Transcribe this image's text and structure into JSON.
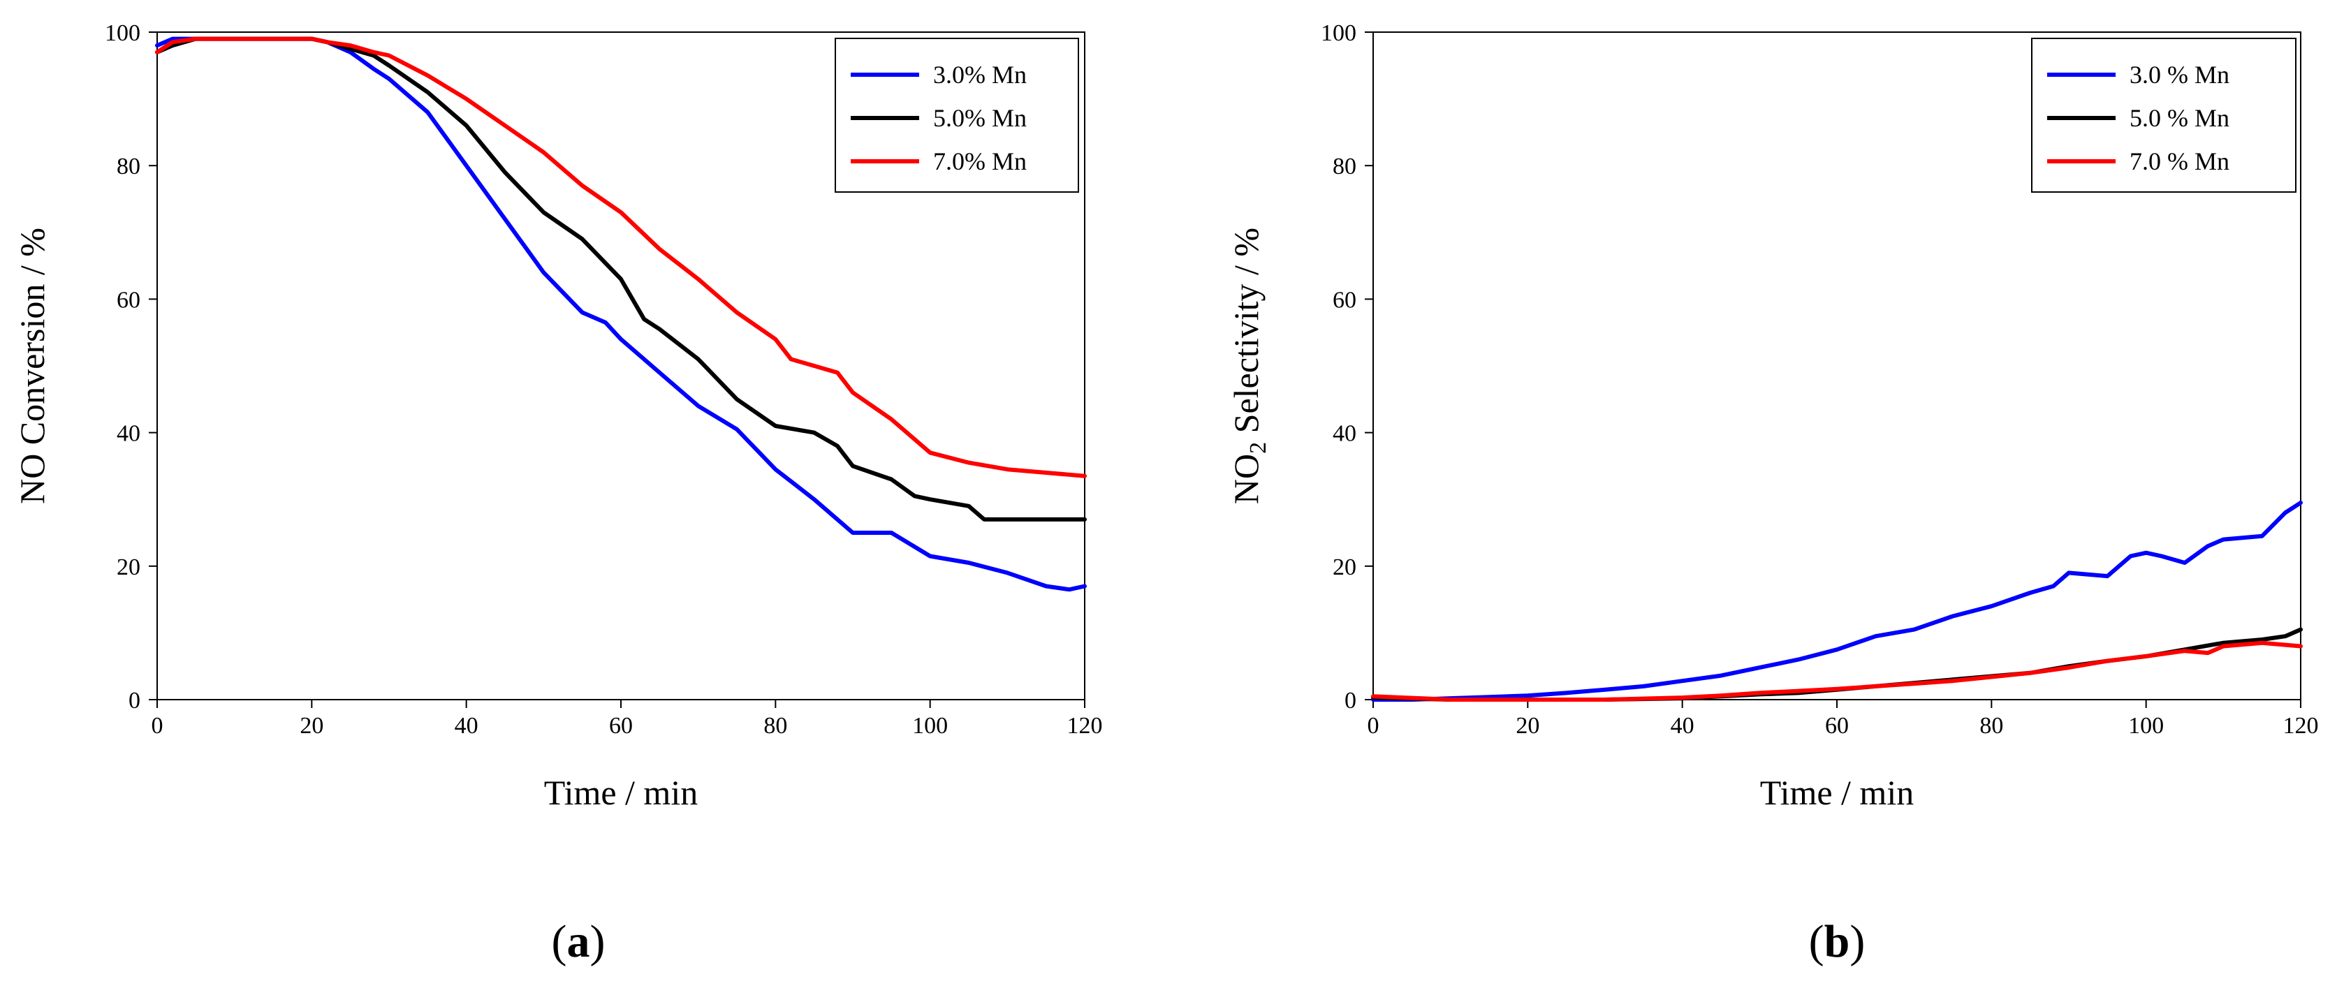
{
  "chart_data": [
    {
      "type": "line",
      "panel_label": "(a)",
      "panel_letter": "a",
      "xlabel": "Time / min",
      "ylabel": "NO Conversion / %",
      "ylabel_sub": "",
      "ylabel_rest": "",
      "xlim": [
        0,
        120
      ],
      "ylim": [
        0,
        100
      ],
      "xticks": [
        0,
        20,
        40,
        60,
        80,
        100,
        120
      ],
      "yticks": [
        0,
        20,
        40,
        60,
        80,
        100
      ],
      "grid": false,
      "legend_position": "top-right",
      "series": [
        {
          "name": "3.0% Mn",
          "color": "#0000ff",
          "x": [
            0,
            2,
            5,
            10,
            15,
            20,
            22,
            25,
            28,
            30,
            35,
            40,
            45,
            50,
            55,
            58,
            60,
            65,
            70,
            75,
            80,
            85,
            90,
            95,
            100,
            105,
            110,
            115,
            118,
            120
          ],
          "y": [
            98,
            99,
            99,
            99,
            99,
            99,
            98.5,
            97,
            94.5,
            93,
            88,
            80,
            72,
            64,
            58,
            56.5,
            54,
            49,
            44,
            40.5,
            34.5,
            30,
            25,
            25,
            21.5,
            20.5,
            19,
            17,
            16.5,
            17
          ]
        },
        {
          "name": "5.0% Mn",
          "color": "#000000",
          "x": [
            0,
            2,
            5,
            10,
            15,
            20,
            22,
            25,
            28,
            30,
            35,
            40,
            45,
            50,
            55,
            60,
            63,
            65,
            70,
            75,
            80,
            85,
            88,
            90,
            95,
            98,
            100,
            105,
            107,
            110,
            115,
            120
          ],
          "y": [
            97,
            98,
            99,
            99,
            99,
            99,
            98.5,
            97.5,
            96.5,
            95,
            91,
            86,
            79,
            73,
            69,
            63,
            57,
            55.5,
            51,
            45,
            41,
            40,
            38,
            35,
            33,
            30.5,
            30,
            29,
            27,
            27,
            27,
            27
          ]
        },
        {
          "name": "7.0% Mn",
          "color": "#ff0000",
          "x": [
            0,
            2,
            5,
            10,
            15,
            20,
            22,
            25,
            28,
            30,
            35,
            40,
            45,
            50,
            55,
            60,
            65,
            70,
            75,
            80,
            82,
            85,
            88,
            90,
            95,
            100,
            105,
            110,
            115,
            120
          ],
          "y": [
            97,
            98.5,
            99,
            99,
            99,
            99,
            98.5,
            98,
            97,
            96.5,
            93.5,
            90,
            86,
            82,
            77,
            73,
            67.5,
            63,
            58,
            54,
            51,
            50,
            49,
            46,
            42,
            37,
            35.5,
            34.5,
            34,
            33.5
          ]
        }
      ]
    },
    {
      "type": "line",
      "panel_label": "(b)",
      "panel_letter": "b",
      "xlabel": "Time / min",
      "ylabel": "NO",
      "ylabel_sub": "2",
      "ylabel_rest": " Selectivity / %",
      "xlim": [
        0,
        120
      ],
      "ylim": [
        0,
        100
      ],
      "xticks": [
        0,
        20,
        40,
        60,
        80,
        100,
        120
      ],
      "yticks": [
        0,
        20,
        40,
        60,
        80,
        100
      ],
      "grid": false,
      "legend_position": "top-right",
      "series": [
        {
          "name": "3.0 % Mn",
          "color": "#0000ff",
          "x": [
            0,
            5,
            10,
            15,
            20,
            25,
            30,
            35,
            40,
            45,
            50,
            55,
            60,
            65,
            70,
            75,
            80,
            85,
            88,
            90,
            95,
            98,
            100,
            102,
            105,
            108,
            110,
            115,
            118,
            120
          ],
          "y": [
            0,
            0,
            0.2,
            0.4,
            0.6,
            1.0,
            1.5,
            2.0,
            2.8,
            3.6,
            4.8,
            6.0,
            7.5,
            9.5,
            10.5,
            12.5,
            14,
            16,
            17,
            19,
            18.5,
            21.5,
            22,
            21.5,
            20.5,
            23,
            24,
            24.5,
            28,
            29.5
          ]
        },
        {
          "name": "5.0 % Mn",
          "color": "#000000",
          "x": [
            0,
            10,
            20,
            30,
            40,
            45,
            50,
            55,
            60,
            65,
            70,
            75,
            80,
            85,
            90,
            95,
            100,
            105,
            110,
            115,
            118,
            120
          ],
          "y": [
            0.3,
            0,
            0,
            0,
            0.2,
            0.5,
            0.8,
            1.0,
            1.5,
            2.0,
            2.5,
            3.0,
            3.5,
            4.0,
            5.0,
            5.8,
            6.5,
            7.5,
            8.5,
            9.0,
            9.5,
            10.5
          ]
        },
        {
          "name": "7.0 % Mn",
          "color": "#ff0000",
          "x": [
            0,
            10,
            20,
            30,
            40,
            45,
            50,
            55,
            60,
            65,
            70,
            75,
            80,
            85,
            90,
            95,
            100,
            105,
            108,
            110,
            115,
            120
          ],
          "y": [
            0.5,
            0,
            0,
            0,
            0.3,
            0.6,
            1.0,
            1.3,
            1.6,
            2.0,
            2.4,
            2.8,
            3.4,
            4.0,
            4.8,
            5.8,
            6.5,
            7.3,
            7.0,
            8.0,
            8.5,
            8.0
          ]
        }
      ]
    }
  ]
}
